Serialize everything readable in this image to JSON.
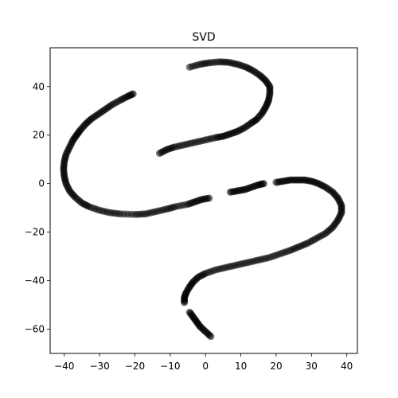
{
  "chart_data": {
    "type": "scatter",
    "title": "SVD",
    "xlabel": "",
    "ylabel": "",
    "xlim": [
      -44,
      43
    ],
    "ylim": [
      -70,
      56
    ],
    "xticks": [
      -40,
      -30,
      -20,
      -10,
      0,
      10,
      20,
      30,
      40
    ],
    "yticks": [
      -60,
      -40,
      -20,
      0,
      20,
      40
    ],
    "grid": false,
    "legend": "none",
    "marker_color": "#000000",
    "marker_alpha": 0.55,
    "series": [
      {
        "values": [
          [
            -20.5,
            37
          ],
          [
            -22,
            36
          ],
          [
            -24,
            34.5
          ],
          [
            -26.5,
            32.5
          ],
          [
            -28.5,
            30.5
          ],
          [
            -30.5,
            28.5
          ],
          [
            -32.5,
            26.5
          ],
          [
            -34,
            24.5
          ],
          [
            -35.5,
            22
          ],
          [
            -36.5,
            20
          ],
          [
            -37.5,
            18
          ],
          [
            -38.5,
            15
          ],
          [
            -39.5,
            12
          ],
          [
            -40,
            9
          ],
          [
            -40.2,
            6
          ],
          [
            -40,
            3
          ],
          [
            -39.5,
            0
          ],
          [
            -38.5,
            -3
          ],
          [
            -37,
            -5.5
          ],
          [
            -35,
            -8
          ],
          [
            -33,
            -9.5
          ],
          [
            -30,
            -11
          ],
          [
            -27,
            -12
          ],
          [
            -24,
            -12.5
          ],
          [
            -20,
            -12.7
          ],
          [
            -17,
            -12.5
          ],
          [
            -14,
            -11.5
          ],
          [
            -11,
            -10.5
          ],
          [
            -8.5,
            -9.5
          ],
          [
            -5,
            -8.5
          ],
          [
            -3,
            -7.5
          ],
          [
            -1,
            -6.5
          ],
          [
            1,
            -6
          ]
        ]
      },
      {
        "values": [
          [
            7,
            -3.5
          ],
          [
            9,
            -3
          ],
          [
            11,
            -2.5
          ],
          [
            13,
            -1.5
          ],
          [
            15,
            -0.5
          ],
          [
            16.5,
            0
          ]
        ]
      },
      {
        "values": [
          [
            20,
            0.5
          ],
          [
            22,
            1
          ],
          [
            24,
            1.5
          ],
          [
            26,
            1.5
          ],
          [
            28,
            1.5
          ],
          [
            30,
            1
          ],
          [
            32,
            0
          ],
          [
            34,
            -1.5
          ],
          [
            36,
            -3.5
          ],
          [
            37.5,
            -6
          ],
          [
            38.5,
            -9
          ],
          [
            38.5,
            -12
          ],
          [
            37.5,
            -15
          ],
          [
            36,
            -18
          ],
          [
            34,
            -20.5
          ],
          [
            31.5,
            -22.5
          ],
          [
            29,
            -24.5
          ],
          [
            26.5,
            -26
          ],
          [
            24,
            -27.5
          ],
          [
            21,
            -29
          ],
          [
            18,
            -30.5
          ],
          [
            15,
            -31.5
          ],
          [
            12,
            -32.5
          ],
          [
            9,
            -33.5
          ],
          [
            6,
            -34.5
          ],
          [
            3,
            -35.5
          ],
          [
            0,
            -37
          ],
          [
            -2,
            -38.5
          ],
          [
            -3.5,
            -40.5
          ],
          [
            -4.5,
            -42.5
          ],
          [
            -5.5,
            -45
          ],
          [
            -6,
            -47
          ],
          [
            -6,
            -49
          ]
        ]
      },
      {
        "values": [
          [
            -4.5,
            -53
          ],
          [
            -3.5,
            -55
          ],
          [
            -2.5,
            -57
          ],
          [
            -1.5,
            -59
          ],
          [
            0,
            -61
          ],
          [
            1.5,
            -63
          ]
        ]
      },
      {
        "values": [
          [
            -13,
            12.5
          ],
          [
            -11,
            14
          ],
          [
            -9,
            15
          ],
          [
            -6,
            16
          ],
          [
            -3,
            17
          ],
          [
            0,
            18
          ],
          [
            3,
            19
          ],
          [
            5,
            19.5
          ],
          [
            7,
            20.5
          ],
          [
            9,
            21.5
          ],
          [
            11,
            23
          ],
          [
            13,
            25
          ],
          [
            14.5,
            26.5
          ],
          [
            16,
            29
          ],
          [
            17,
            31.5
          ],
          [
            17.8,
            34
          ],
          [
            18.2,
            37
          ],
          [
            18.2,
            40
          ],
          [
            17,
            42.5
          ],
          [
            15.5,
            44.5
          ],
          [
            13.5,
            46.5
          ],
          [
            11.5,
            48
          ],
          [
            9,
            49.2
          ],
          [
            6.5,
            50
          ],
          [
            4,
            50.2
          ],
          [
            1,
            49.8
          ],
          [
            -1.5,
            49.2
          ],
          [
            -4.5,
            48
          ]
        ]
      }
    ]
  }
}
